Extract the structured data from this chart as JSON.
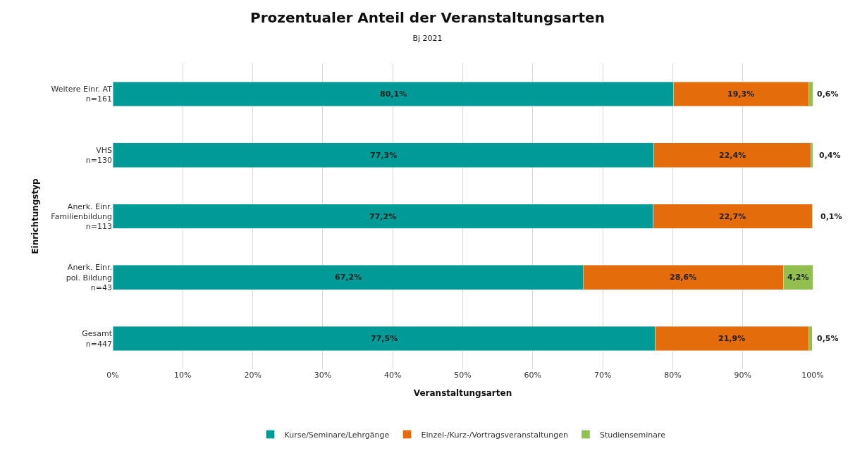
{
  "chart_data": {
    "type": "bar",
    "orientation": "horizontal",
    "stacked": true,
    "title": "Prozentualer Anteil der Veranstaltungsarten",
    "subtitle": "Bj 2021",
    "xlabel": "Veranstaltungsarten",
    "ylabel": "Einrichtungstyp",
    "categories": [
      "Weitere Einr. AT\nn=161",
      "VHS\nn=130",
      "Anerk. Einr.\nFamilienbildung\nn=113",
      "Anerk. Einr.\npol. Bildung\nn=43",
      "Gesamt\nn=447"
    ],
    "series": [
      {
        "name": "Kurse/Seminare/Lehrgänge",
        "color": "#009a97",
        "values": [
          80.1,
          77.3,
          77.2,
          67.2,
          77.5
        ],
        "value_labels": [
          "80,1%",
          "77,3%",
          "77,2%",
          "67,2%",
          "77,5%"
        ]
      },
      {
        "name": "Einzel-/Kurz-/Vortragsveranstaltungen",
        "color": "#e46c0a",
        "values": [
          19.3,
          22.4,
          22.7,
          28.6,
          21.9
        ],
        "value_labels": [
          "19,3%",
          "22,4%",
          "22,7%",
          "28,6%",
          "21,9%"
        ]
      },
      {
        "name": "Studienseminare",
        "color": "#92c050",
        "values": [
          0.6,
          0.4,
          0.1,
          4.2,
          0.5
        ],
        "value_labels": [
          "0,6%",
          "0,4%",
          "0,1%",
          "4,2%",
          "0,5%"
        ]
      }
    ],
    "xlim": [
      0,
      100
    ],
    "xticks": [
      {
        "value": 0,
        "label": "0%"
      },
      {
        "value": 10,
        "label": "10%"
      },
      {
        "value": 20,
        "label": "20%"
      },
      {
        "value": 30,
        "label": "30%"
      },
      {
        "value": 40,
        "label": "40%"
      },
      {
        "value": 50,
        "label": "50%"
      },
      {
        "value": 60,
        "label": "60%"
      },
      {
        "value": 70,
        "label": "70%"
      },
      {
        "value": 80,
        "label": "80%"
      },
      {
        "value": 90,
        "label": "90%"
      },
      {
        "value": 100,
        "label": "100%"
      }
    ],
    "grid": "x",
    "legend": "bottom"
  }
}
